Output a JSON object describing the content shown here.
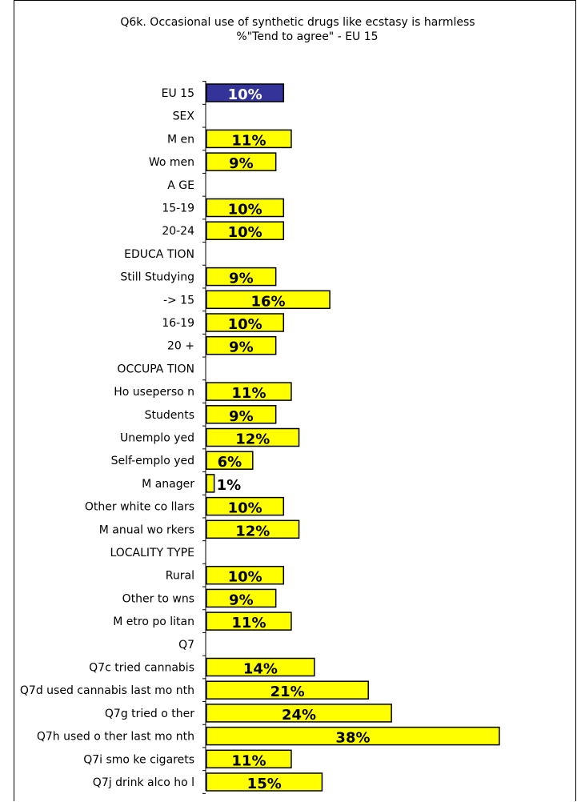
{
  "chart_data": {
    "type": "bar",
    "orientation": "horizontal",
    "title": "Q6k. Occasional use of synthetic drugs like ecstasy is harmless",
    "subtitle": "%\"Tend to agree\" - EU 15",
    "xlim": [
      0,
      38
    ],
    "grid": false,
    "legend": "none",
    "colors": {
      "highlight": "#333399",
      "bar": "#ffff00",
      "outline": "#000000",
      "highlight_text": "#ffffff",
      "text": "#000000"
    },
    "categories": [
      "EU 15",
      "SEX",
      "M en",
      "Wo men",
      "A GE",
      "15-19",
      "20-24",
      "EDUCA TION",
      "Still Studying",
      "-> 15",
      "16-19",
      "20 +",
      "OCCUPA TION",
      "Ho useperso n",
      "Students",
      "Unemplo yed",
      "Self-emplo yed",
      "M anager",
      "Other white co llars",
      "M anual wo rkers",
      "LOCALITY TYPE",
      "Rural",
      "Other to wns",
      "M etro po litan",
      "Q7",
      "Q7c tried cannabis",
      "Q7d used cannabis last mo nth",
      "Q7g tried o ther",
      "Q7h used o ther last mo nth",
      "Q7i smo ke cigarets",
      "Q7j drink alco ho l"
    ],
    "values": [
      10,
      null,
      11,
      9,
      null,
      10,
      10,
      null,
      9,
      16,
      10,
      9,
      null,
      11,
      9,
      12,
      6,
      1,
      10,
      12,
      null,
      10,
      9,
      11,
      null,
      14,
      21,
      24,
      38,
      11,
      15
    ],
    "value_labels": [
      "10%",
      "",
      "11%",
      "9%",
      "",
      "10%",
      "10%",
      "",
      "9%",
      "16%",
      "10%",
      "9%",
      "",
      "11%",
      "9%",
      "12%",
      "6%",
      "1%",
      "10%",
      "12%",
      "",
      "10%",
      "9%",
      "11%",
      "",
      "14%",
      "21%",
      "24%",
      "38%",
      "11%",
      "15%"
    ],
    "highlight_index": 0
  }
}
